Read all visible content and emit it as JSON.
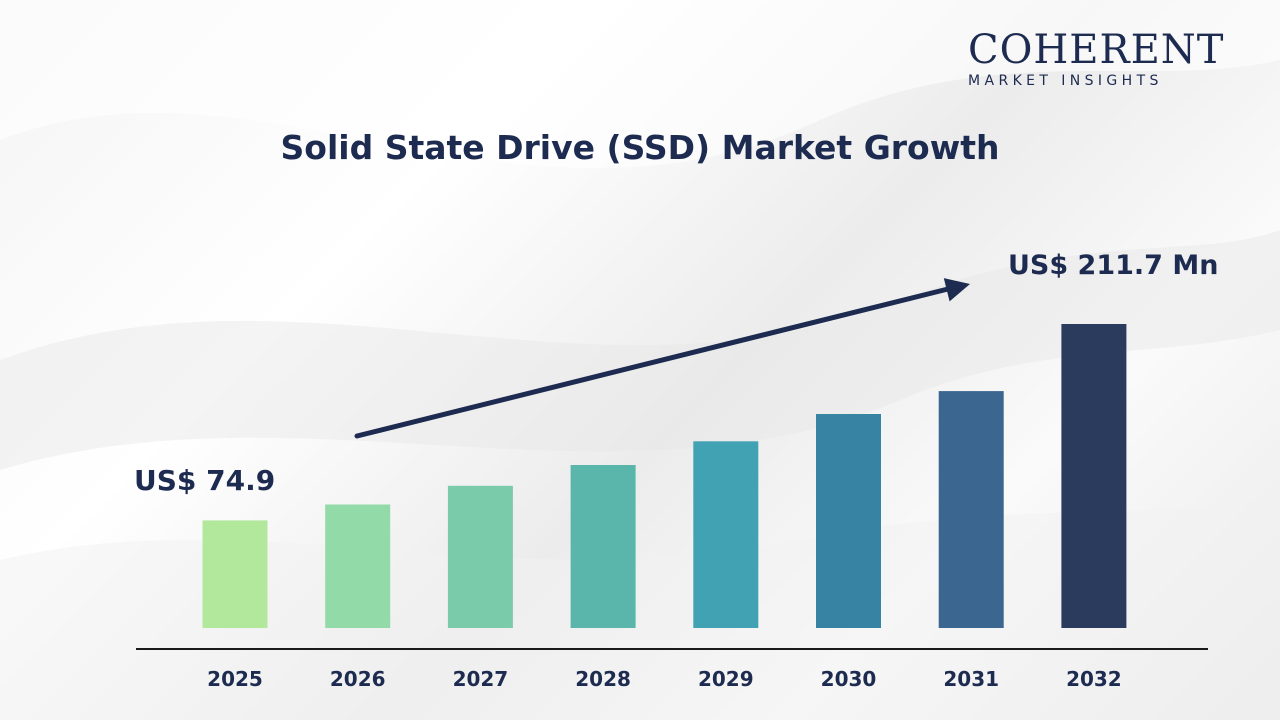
{
  "brand": {
    "logo_main": "COHERENT",
    "logo_sub": "MARKET INSIGHTS"
  },
  "callouts": {
    "start": "US$ 74.9",
    "end": "US$ 211.7 Mn"
  },
  "colors": {
    "title": "#1d2b50",
    "bars": [
      "#b2e89c",
      "#92dba8",
      "#7acbaa",
      "#5ab5ab",
      "#41a2b4",
      "#3683a4",
      "#3a6690",
      "#2b3b5e"
    ]
  },
  "chart_data": {
    "type": "bar",
    "title": "Solid State Drive (SSD) Market Growth",
    "categories": [
      "2025",
      "2026",
      "2027",
      "2028",
      "2029",
      "2030",
      "2031",
      "2032"
    ],
    "values": [
      74.9,
      86.0,
      99.0,
      113.5,
      130.0,
      149.0,
      165.0,
      211.7
    ],
    "unit": "US$ Mn",
    "ylim": [
      0,
      230
    ],
    "grid": false,
    "trend_arrow": true
  }
}
